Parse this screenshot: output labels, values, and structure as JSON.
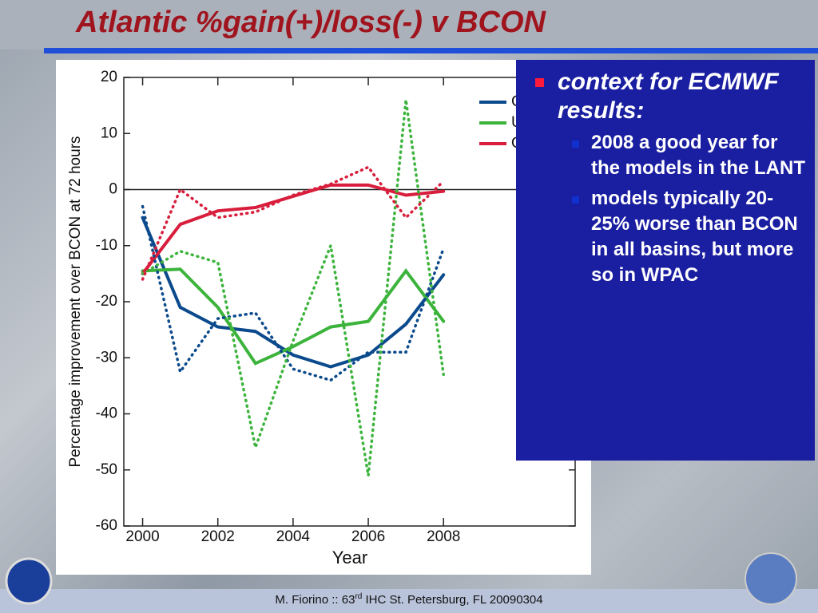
{
  "slide": {
    "title": "Atlantic %gain(+)/loss(-) v BCON",
    "heading": "context for ECMWF results:",
    "bullets": [
      "2008 a good year for the models in the LANT",
      "models typically 20-25% worse than BCON in all basins, but more so in WPAC"
    ],
    "footer": [
      "M. Fiorino :: 63",
      "rd",
      " IHC St. Petersburg, FL 20090304"
    ]
  },
  "chart_data": {
    "type": "line",
    "xlabel": "Year",
    "ylabel": "Percentage improvement over BCON at 72 hours",
    "x": [
      2000,
      2001,
      2002,
      2003,
      2004,
      2005,
      2006,
      2007,
      2008
    ],
    "xlim": [
      1999.5,
      2011.5
    ],
    "xticks": [
      2000,
      2002,
      2004,
      2006,
      2008
    ],
    "ylim": [
      -60,
      20
    ],
    "yticks": [
      -60,
      -50,
      -40,
      -30,
      -20,
      -10,
      0,
      10,
      20
    ],
    "legend": "upper right",
    "series": [
      {
        "name": "GFDL",
        "color": "#0b4a8c",
        "style": "solid",
        "values": [
          -5,
          -21,
          -24.5,
          -25.3,
          -29.5,
          -31.6,
          -29.5,
          -24,
          -15.2
        ]
      },
      {
        "name": "UKMO",
        "color": "#3cb43c",
        "style": "solid",
        "values": [
          -14.5,
          -14.2,
          -21,
          -31,
          -28,
          -24.5,
          -23.5,
          -14.5,
          -23.5
        ]
      },
      {
        "name": "OFCL",
        "color": "#d81e3c",
        "style": "solid",
        "values": [
          -15,
          -6.2,
          -3.8,
          -3.2,
          -1.2,
          0.8,
          0.8,
          -1,
          -0.3
        ]
      },
      {
        "color": "#0b4a8c",
        "style": "dotted",
        "values": [
          -3,
          -32.5,
          -23,
          -22,
          -32,
          -34,
          -29,
          -29,
          -10.5
        ]
      },
      {
        "color": "#3cb43c",
        "style": "dotted",
        "values": [
          -15,
          -11,
          -13,
          -46,
          -27,
          -10,
          -51,
          16,
          -33
        ]
      },
      {
        "color": "#d81e3c",
        "style": "dotted",
        "values": [
          -16,
          0,
          -5,
          -4,
          -1,
          1,
          4,
          -5,
          1.5
        ]
      }
    ]
  }
}
